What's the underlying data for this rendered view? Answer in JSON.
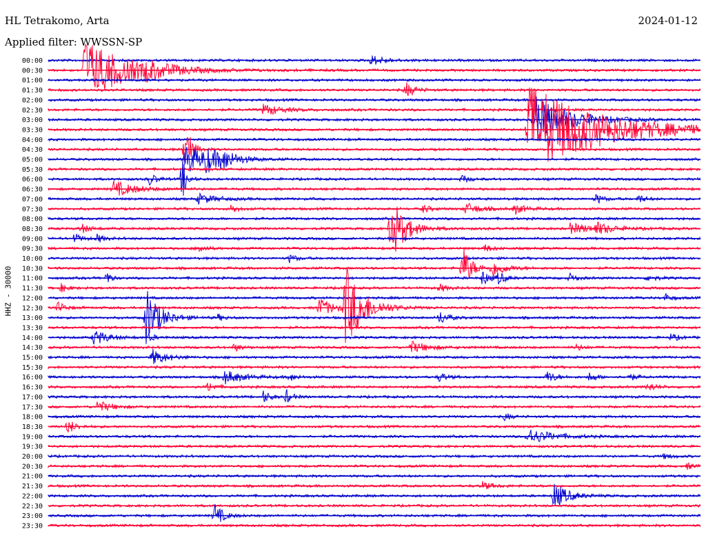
{
  "header": {
    "station": "HL Tetrakomo, Arta",
    "date": "2024-01-12",
    "filter": "Applied filter: WWSSN-SP"
  },
  "chart_data": {
    "type": "seismogram",
    "title": "HL Tetrakomo, Arta",
    "date": "2024-01-12",
    "filter": "WWSSN-SP",
    "ylabel": "HHZ - 30000",
    "colors": [
      "#0000cc",
      "#ff0033"
    ],
    "rows": [
      "00:00",
      "00:30",
      "01:00",
      "01:30",
      "02:00",
      "02:30",
      "03:00",
      "03:30",
      "04:00",
      "04:30",
      "05:00",
      "05:30",
      "06:00",
      "06:30",
      "07:00",
      "07:30",
      "08:00",
      "08:30",
      "09:00",
      "09:30",
      "10:00",
      "10:30",
      "11:00",
      "11:30",
      "12:00",
      "12:30",
      "13:00",
      "13:30",
      "14:00",
      "14:30",
      "15:00",
      "15:30",
      "16:00",
      "16:30",
      "17:00",
      "17:30",
      "18:00",
      "18:30",
      "19:00",
      "19:30",
      "20:00",
      "20:30",
      "21:00",
      "21:30",
      "22:00",
      "22:30",
      "23:00",
      "23:30"
    ],
    "events": [
      {
        "row": 1,
        "t": 0.055,
        "amp": 3.2,
        "dur": 0.06
      },
      {
        "row": 1,
        "t": 0.15,
        "amp": 0.6,
        "dur": 0.03
      },
      {
        "row": 0,
        "t": 0.495,
        "amp": 0.5,
        "dur": 0.02
      },
      {
        "row": 3,
        "t": 0.548,
        "amp": 0.8,
        "dur": 0.012
      },
      {
        "row": 5,
        "t": 0.33,
        "amp": 0.6,
        "dur": 0.025
      },
      {
        "row": 7,
        "t": 0.735,
        "amp": 4.8,
        "dur": 0.1
      },
      {
        "row": 6,
        "t": 0.745,
        "amp": 2.4,
        "dur": 0.05
      },
      {
        "row": 10,
        "t": 0.21,
        "amp": 1.6,
        "dur": 0.03
      },
      {
        "row": 10,
        "t": 0.24,
        "amp": 1.0,
        "dur": 0.02
      },
      {
        "row": 10,
        "t": 0.265,
        "amp": 0.8,
        "dur": 0.02
      },
      {
        "row": 9,
        "t": 0.21,
        "amp": 3.4,
        "dur": 0.008
      },
      {
        "row": 12,
        "t": 0.205,
        "amp": 2.5,
        "dur": 0.006
      },
      {
        "row": 12,
        "t": 0.155,
        "amp": 0.6,
        "dur": 0.01
      },
      {
        "row": 12,
        "t": 0.634,
        "amp": 0.4,
        "dur": 0.01
      },
      {
        "row": 13,
        "t": 0.1,
        "amp": 0.8,
        "dur": 0.03
      },
      {
        "row": 14,
        "t": 0.23,
        "amp": 0.5,
        "dur": 0.025
      },
      {
        "row": 14,
        "t": 0.84,
        "amp": 0.5,
        "dur": 0.01
      },
      {
        "row": 14,
        "t": 0.905,
        "amp": 0.4,
        "dur": 0.01
      },
      {
        "row": 15,
        "t": 0.28,
        "amp": 0.4,
        "dur": 0.01
      },
      {
        "row": 15,
        "t": 0.575,
        "amp": 0.4,
        "dur": 0.01
      },
      {
        "row": 15,
        "t": 0.64,
        "amp": 0.6,
        "dur": 0.02
      },
      {
        "row": 15,
        "t": 0.715,
        "amp": 0.5,
        "dur": 0.015
      },
      {
        "row": 17,
        "t": 0.525,
        "amp": 3.5,
        "dur": 0.02
      },
      {
        "row": 17,
        "t": 0.05,
        "amp": 0.5,
        "dur": 0.012
      },
      {
        "row": 17,
        "t": 0.8,
        "amp": 0.5,
        "dur": 0.04
      },
      {
        "row": 17,
        "t": 0.84,
        "amp": 0.5,
        "dur": 0.02
      },
      {
        "row": 18,
        "t": 0.04,
        "amp": 0.5,
        "dur": 0.01
      },
      {
        "row": 18,
        "t": 0.075,
        "amp": 0.4,
        "dur": 0.01
      },
      {
        "row": 19,
        "t": 0.23,
        "amp": 0.5,
        "dur": 0.01
      },
      {
        "row": 19,
        "t": 0.67,
        "amp": 0.4,
        "dur": 0.01
      },
      {
        "row": 20,
        "t": 0.37,
        "amp": 0.4,
        "dur": 0.01
      },
      {
        "row": 21,
        "t": 0.635,
        "amp": 2.5,
        "dur": 0.012
      },
      {
        "row": 21,
        "t": 0.68,
        "amp": 0.8,
        "dur": 0.02
      },
      {
        "row": 22,
        "t": 0.09,
        "amp": 0.8,
        "dur": 0.005
      },
      {
        "row": 22,
        "t": 0.665,
        "amp": 0.8,
        "dur": 0.01
      },
      {
        "row": 22,
        "t": 0.69,
        "amp": 0.6,
        "dur": 0.01
      },
      {
        "row": 22,
        "t": 0.8,
        "amp": 0.4,
        "dur": 0.01
      },
      {
        "row": 22,
        "t": 0.92,
        "amp": 0.4,
        "dur": 0.01
      },
      {
        "row": 23,
        "t": 0.02,
        "amp": 0.4,
        "dur": 0.01
      },
      {
        "row": 23,
        "t": 0.6,
        "amp": 0.4,
        "dur": 0.01
      },
      {
        "row": 24,
        "t": 0.945,
        "amp": 0.4,
        "dur": 0.01
      },
      {
        "row": 25,
        "t": 0.455,
        "amp": 4.4,
        "dur": 0.025
      },
      {
        "row": 25,
        "t": 0.415,
        "amp": 1.0,
        "dur": 0.02
      },
      {
        "row": 25,
        "t": 0.015,
        "amp": 0.6,
        "dur": 0.01
      },
      {
        "row": 26,
        "t": 0.15,
        "amp": 3.0,
        "dur": 0.02
      },
      {
        "row": 26,
        "t": 0.6,
        "amp": 0.7,
        "dur": 0.012
      },
      {
        "row": 26,
        "t": 0.26,
        "amp": 0.3,
        "dur": 0.01
      },
      {
        "row": 28,
        "t": 0.07,
        "amp": 0.8,
        "dur": 0.02
      },
      {
        "row": 28,
        "t": 0.155,
        "amp": 0.4,
        "dur": 0.008
      },
      {
        "row": 28,
        "t": 0.955,
        "amp": 0.4,
        "dur": 0.01
      },
      {
        "row": 29,
        "t": 0.555,
        "amp": 0.6,
        "dur": 0.025
      },
      {
        "row": 29,
        "t": 0.285,
        "amp": 0.4,
        "dur": 0.01
      },
      {
        "row": 29,
        "t": 0.81,
        "amp": 0.3,
        "dur": 0.01
      },
      {
        "row": 30,
        "t": 0.16,
        "amp": 0.8,
        "dur": 0.02
      },
      {
        "row": 32,
        "t": 0.27,
        "amp": 0.7,
        "dur": 0.025
      },
      {
        "row": 32,
        "t": 0.37,
        "amp": 0.4,
        "dur": 0.01
      },
      {
        "row": 32,
        "t": 0.6,
        "amp": 0.5,
        "dur": 0.01
      },
      {
        "row": 32,
        "t": 0.765,
        "amp": 0.6,
        "dur": 0.012
      },
      {
        "row": 32,
        "t": 0.83,
        "amp": 0.5,
        "dur": 0.01
      },
      {
        "row": 32,
        "t": 0.89,
        "amp": 0.4,
        "dur": 0.01
      },
      {
        "row": 33,
        "t": 0.245,
        "amp": 0.5,
        "dur": 0.01
      },
      {
        "row": 33,
        "t": 0.92,
        "amp": 0.5,
        "dur": 0.01
      },
      {
        "row": 34,
        "t": 0.33,
        "amp": 0.6,
        "dur": 0.01
      },
      {
        "row": 34,
        "t": 0.365,
        "amp": 0.7,
        "dur": 0.008
      },
      {
        "row": 35,
        "t": 0.075,
        "amp": 0.6,
        "dur": 0.02
      },
      {
        "row": 36,
        "t": 0.7,
        "amp": 0.4,
        "dur": 0.008
      },
      {
        "row": 37,
        "t": 0.03,
        "amp": 0.8,
        "dur": 0.01
      },
      {
        "row": 38,
        "t": 0.735,
        "amp": 0.8,
        "dur": 0.035
      },
      {
        "row": 40,
        "t": 0.945,
        "amp": 0.3,
        "dur": 0.01
      },
      {
        "row": 41,
        "t": 0.98,
        "amp": 0.3,
        "dur": 0.01
      },
      {
        "row": 43,
        "t": 0.665,
        "amp": 0.4,
        "dur": 0.015
      },
      {
        "row": 44,
        "t": 0.775,
        "amp": 1.4,
        "dur": 0.02
      },
      {
        "row": 46,
        "t": 0.255,
        "amp": 1.2,
        "dur": 0.012
      }
    ]
  }
}
